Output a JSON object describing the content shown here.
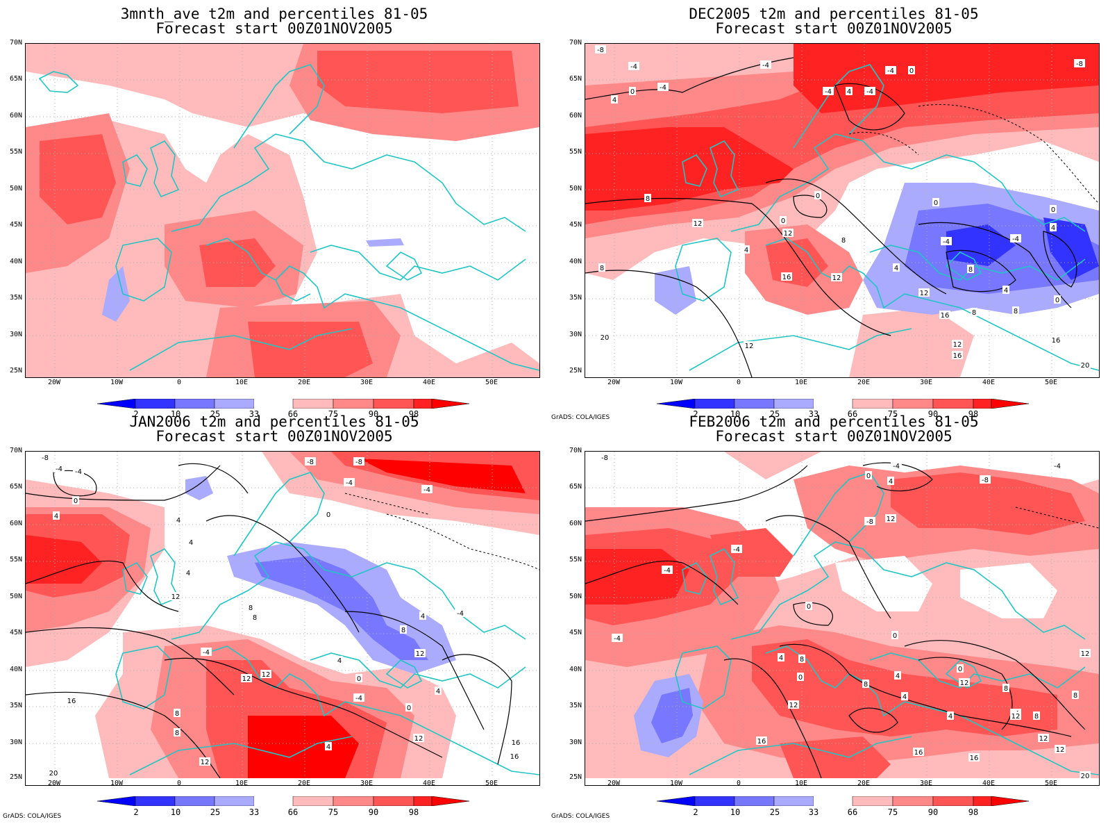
{
  "panels": [
    {
      "title_line1": "3mnth_ave t2m and percentiles 81-05",
      "title_line2": "Forecast start 00Z01NOV2005",
      "credit": "",
      "contours": false,
      "contour_labels": []
    },
    {
      "title_line1": "DEC2005 t2m and percentiles 81-05",
      "title_line2": "Forecast start 00Z01NOV2005",
      "credit": "GrADS: COLA/IGES",
      "contours": true,
      "contour_labels": [
        "-8",
        "-4",
        "-4",
        "0",
        "4",
        "-4",
        "-4",
        "0",
        "4",
        "-4",
        "-4",
        "-8",
        "8",
        "12",
        "0",
        "0",
        "4",
        "8",
        "16",
        "12",
        "12",
        "-4",
        "0",
        "4",
        "0",
        "4",
        "8",
        "-4",
        "12",
        "16",
        "8",
        "4",
        "0",
        "8",
        "8",
        "20",
        "12",
        "12",
        "16",
        "16",
        "20"
      ]
    },
    {
      "title_line1": "JAN2006 t2m and percentiles 81-05",
      "title_line2": "Forecast start 00Z01NOV2005",
      "credit": "GrADS: COLA/IGES",
      "contours": true,
      "contour_labels": [
        "-8",
        "-4",
        "-4",
        "0",
        "4",
        "4",
        "-8",
        "-8",
        "-4",
        "-4",
        "0",
        "-4",
        "8",
        "12",
        "4",
        "4",
        "8",
        "12",
        "12",
        "-4",
        "4",
        "8",
        "4",
        "0",
        "-4",
        "4",
        "16",
        "8",
        "8",
        "12",
        "12",
        "4",
        "0",
        "12",
        "12",
        "16",
        "16",
        "20"
      ]
    },
    {
      "title_line1": "FEB2006 t2m and percentiles 81-05",
      "title_line2": "Forecast start 00Z01NOV2005",
      "credit": "GrADS: COLA/IGES",
      "contours": true,
      "contour_labels": [
        "-8",
        "-4",
        "-4",
        "0",
        "4",
        "-8",
        "-8",
        "-4",
        "-4",
        "-4",
        "0",
        "8",
        "4",
        "12",
        "0",
        "0",
        "12",
        "4",
        "8",
        "0",
        "4",
        "4",
        "-4",
        "8",
        "12",
        "12",
        "8",
        "12",
        "8",
        "12",
        "16",
        "16",
        "16",
        "12",
        "20"
      ]
    }
  ],
  "axes": {
    "lat_labels": [
      "70N",
      "65N",
      "60N",
      "55N",
      "50N",
      "45N",
      "40N",
      "35N",
      "30N",
      "25N"
    ],
    "lon_labels": [
      "20W",
      "10W",
      "0",
      "10E",
      "20E",
      "30E",
      "40E",
      "50E"
    ]
  },
  "colorbar": {
    "labels": [
      "2",
      "10",
      "25",
      "33",
      "66",
      "75",
      "90",
      "98"
    ],
    "colors": [
      "#0000ff",
      "#3333ff",
      "#7777ff",
      "#aaaaff",
      "#ffffff",
      "#ffbbbb",
      "#ff8888",
      "#ff5555",
      "#ff2222",
      "#ff0000"
    ]
  },
  "map_colors": {
    "coast": "#22c4c4",
    "contour": "#000000",
    "grid": "#b0b0b0"
  }
}
